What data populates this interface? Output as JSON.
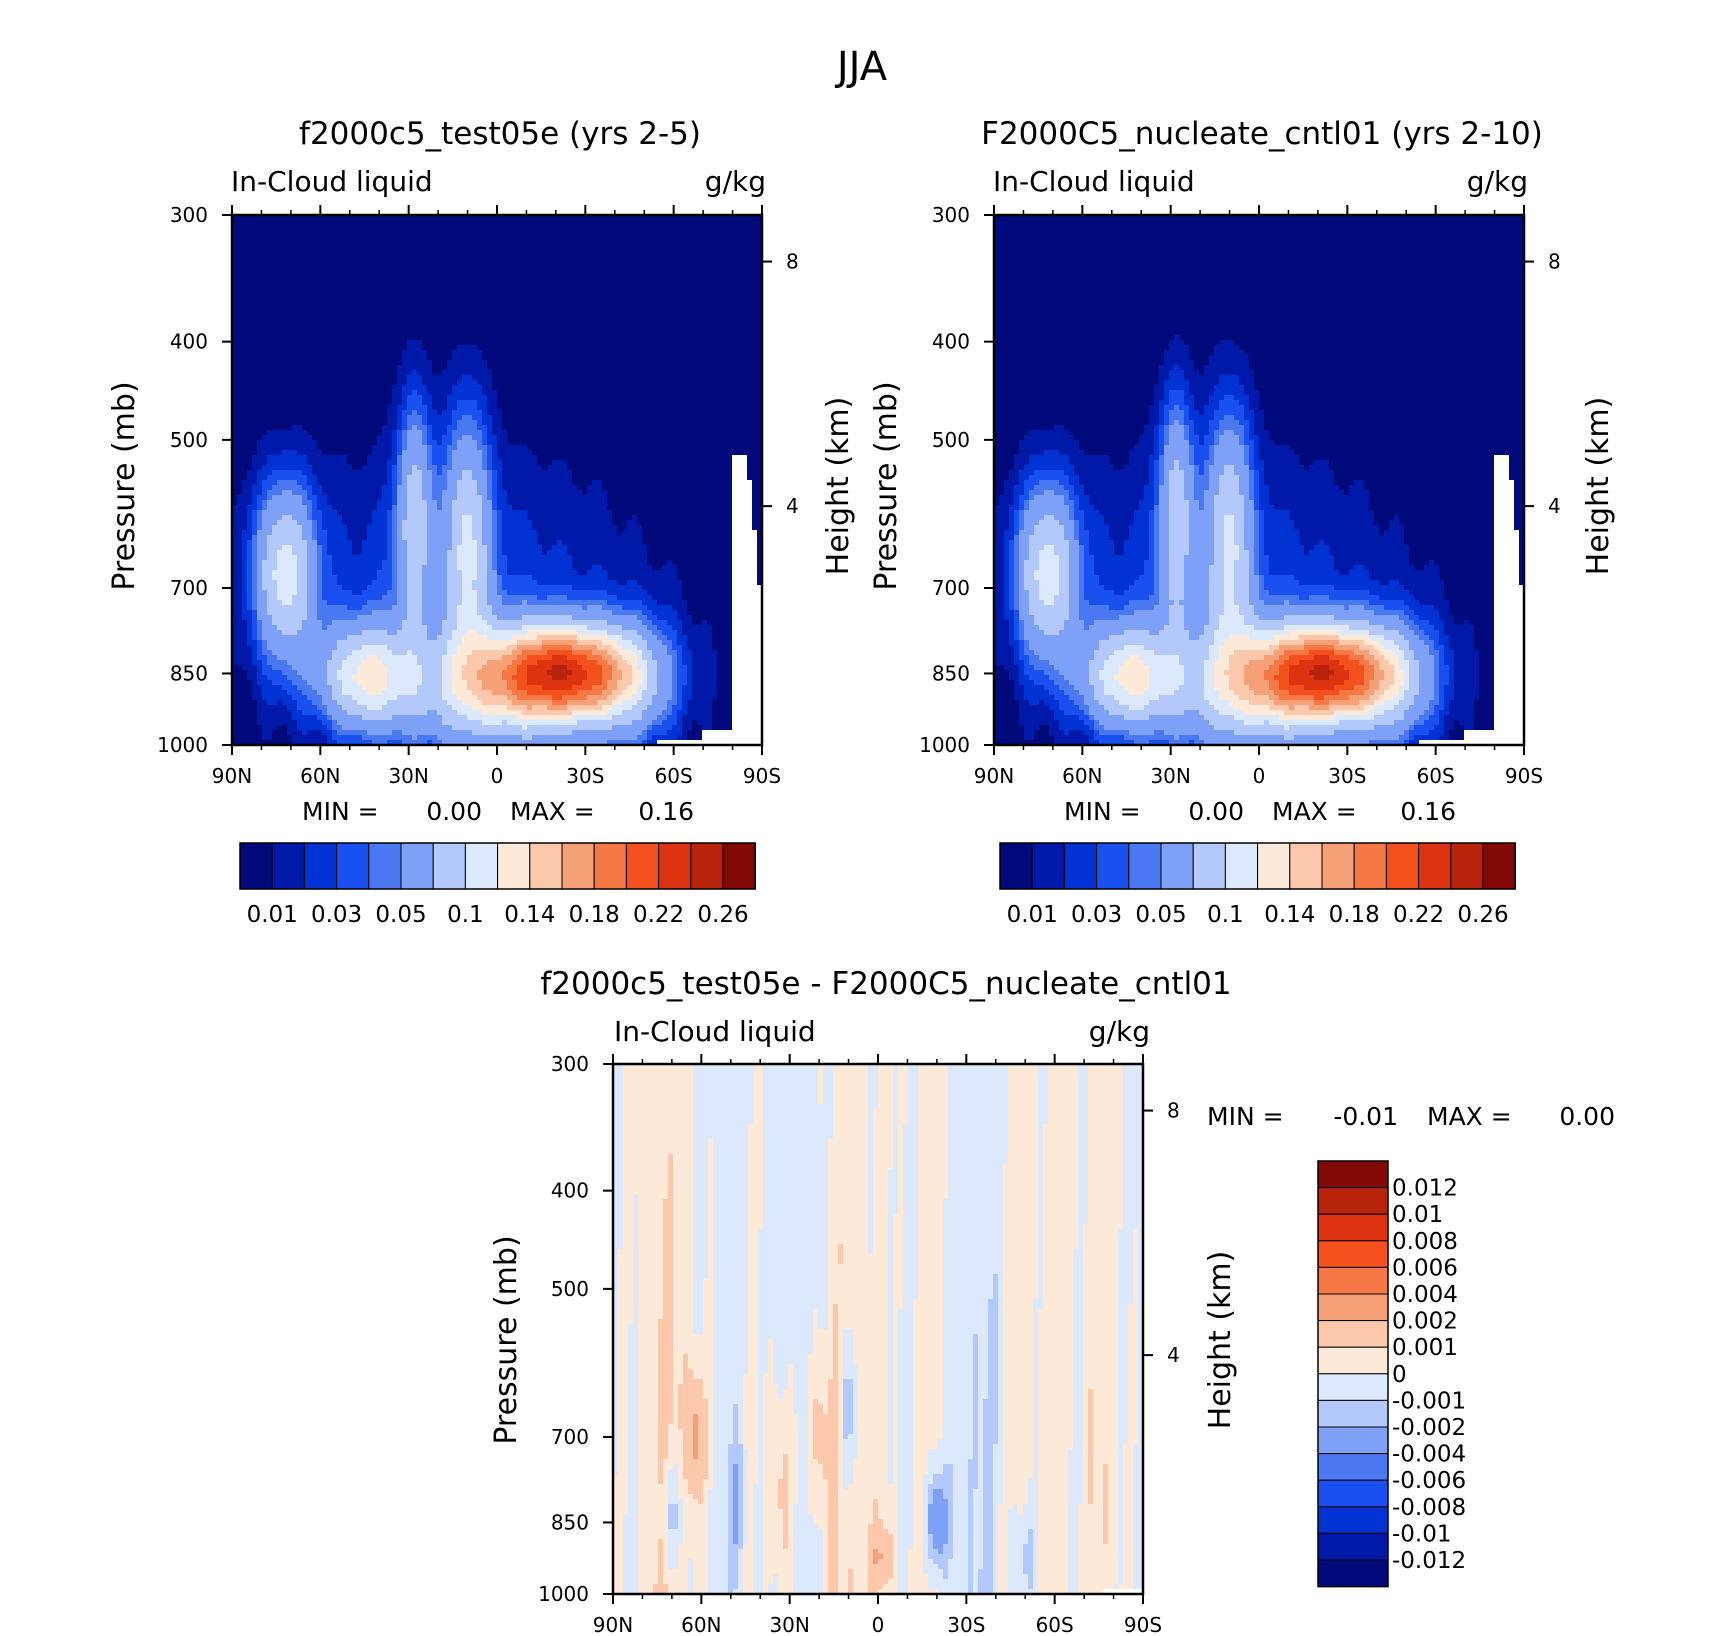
{
  "figure": {
    "title": "JJA"
  },
  "colors": {
    "abs": [
      "#000a7a",
      "#0019a8",
      "#0032d4",
      "#1a4ff0",
      "#4a78f0",
      "#7ea0f6",
      "#b3c8fb",
      "#dce8fb",
      "#fde9d8",
      "#fbc8ac",
      "#f6a078",
      "#f67945",
      "#f4501d",
      "#dd3310",
      "#b8240b",
      "#820a06"
    ],
    "diff": [
      "#000a7a",
      "#0019a8",
      "#0032d4",
      "#1a4ff0",
      "#4a78f0",
      "#7ea0f6",
      "#b3c8fb",
      "#dce8fb",
      "#fde9d8",
      "#fbc8ac",
      "#f6a078",
      "#f67945",
      "#f4501d",
      "#dd3310",
      "#b8240b",
      "#820a06"
    ]
  },
  "chart_data": [
    {
      "type": "heatmap",
      "title": "f2000c5_test05e (yrs 2-5)",
      "left_label": "In-Cloud liquid",
      "right_label": "g/kg",
      "xlabel": "",
      "ylabel": "Pressure (mb)",
      "y2label": "Height (km)",
      "xticks": [
        "90N",
        "60N",
        "30N",
        "0",
        "30S",
        "60S",
        "90S"
      ],
      "yticks": [
        "300",
        "400",
        "500",
        "700",
        "850",
        "1000"
      ],
      "y2ticks": [
        "8",
        "4"
      ],
      "min_label": "MIN =",
      "min_value": "0.00",
      "max_label": "MAX =",
      "max_value": "0.16",
      "levels": [
        "0.01",
        "0.03",
        "0.05",
        "0.1",
        "0.14",
        "0.18",
        "0.22",
        "0.26"
      ],
      "field": "liquid",
      "height_rise": 1.0
    },
    {
      "type": "heatmap",
      "title": "F2000C5_nucleate_cntl01 (yrs 2-10)",
      "left_label": "In-Cloud liquid",
      "right_label": "g/kg",
      "xlabel": "",
      "ylabel": "Pressure (mb)",
      "y2label": "Height (km)",
      "xticks": [
        "90N",
        "60N",
        "30N",
        "0",
        "30S",
        "60S",
        "90S"
      ],
      "yticks": [
        "300",
        "400",
        "500",
        "700",
        "850",
        "1000"
      ],
      "y2ticks": [
        "8",
        "4"
      ],
      "min_label": "MIN =",
      "min_value": "0.00",
      "max_label": "MAX =",
      "max_value": "0.16",
      "levels": [
        "0.01",
        "0.03",
        "0.05",
        "0.1",
        "0.14",
        "0.18",
        "0.22",
        "0.26"
      ],
      "field": "liquid",
      "height_rise": 1.02
    },
    {
      "type": "heatmap",
      "title": "f2000c5_test05e - F2000C5_nucleate_cntl01",
      "left_label": "In-Cloud liquid",
      "right_label": "g/kg",
      "xlabel": "",
      "ylabel": "Pressure (mb)",
      "y2label": "Height (km)",
      "xticks": [
        "90N",
        "60N",
        "30N",
        "0",
        "30S",
        "60S",
        "90S"
      ],
      "yticks": [
        "300",
        "400",
        "500",
        "700",
        "850",
        "1000"
      ],
      "y2ticks": [
        "8",
        "4"
      ],
      "min_label": "MIN =",
      "min_value": "-0.01",
      "max_label": "MAX =",
      "max_value": "0.00",
      "levels": [
        "0.012",
        "0.01",
        "0.008",
        "0.006",
        "0.004",
        "0.002",
        "0.001",
        "0",
        "-0.001",
        "-0.002",
        "-0.004",
        "-0.006",
        "-0.008",
        "-0.01",
        "-0.012"
      ],
      "field": "difference"
    }
  ]
}
